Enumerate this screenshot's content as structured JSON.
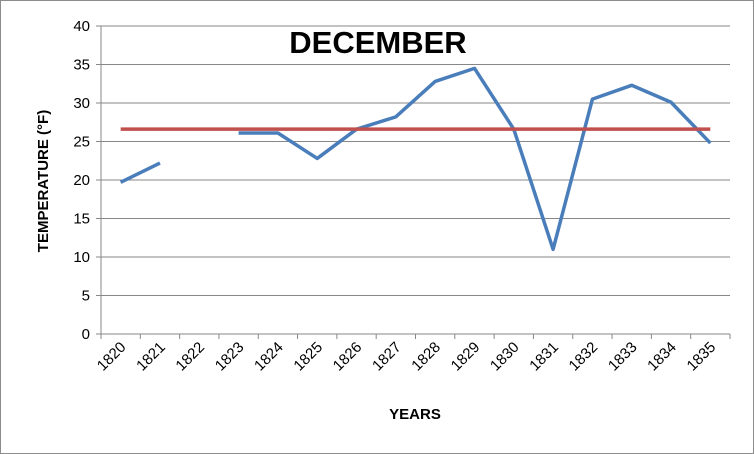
{
  "chart_data": {
    "type": "line",
    "title": "DECEMBER",
    "xlabel": "YEARS",
    "ylabel": "TEMPERATURE (°F)",
    "categories": [
      "1820",
      "1821",
      "1822",
      "1823",
      "1824",
      "1825",
      "1826",
      "1827",
      "1828",
      "1829",
      "1830",
      "1831",
      "1832",
      "1833",
      "1834",
      "1835"
    ],
    "ylim": [
      0,
      40
    ],
    "yticks": [
      0,
      5,
      10,
      15,
      20,
      25,
      30,
      35,
      40
    ],
    "grid": true,
    "legend": "none",
    "series": [
      {
        "color": "#4a7ebb",
        "values": [
          19.7,
          22.2,
          null,
          26.1,
          26.1,
          22.8,
          26.6,
          28.2,
          32.8,
          34.5,
          26.6,
          11.0,
          30.5,
          32.3,
          30.1,
          24.8
        ]
      },
      {
        "color": "#c0504d",
        "values": [
          26.6,
          26.6,
          26.6,
          26.6,
          26.6,
          26.6,
          26.6,
          26.6,
          26.6,
          26.6,
          26.6,
          26.6,
          26.6,
          26.6,
          26.6,
          26.6
        ]
      }
    ]
  }
}
